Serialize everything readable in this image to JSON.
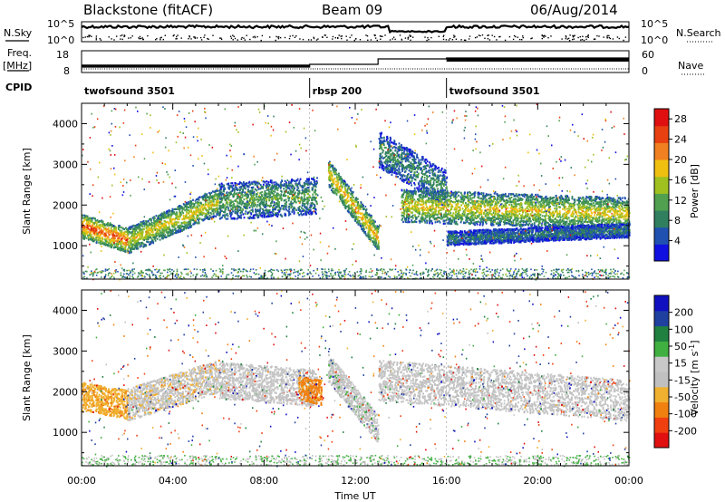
{
  "header": {
    "radar": "Blackstone (fitACF)",
    "beam": "Beam 09",
    "date": "06/Aug/2014"
  },
  "summary": {
    "nsky_label": "N.Sky",
    "nsearch_label": "N.Search",
    "freq_label": "Freq.",
    "freq_unit": "[MHz]",
    "nave_label": "Nave",
    "cpid_label": "CPID",
    "left_tick_hi": "10^5",
    "left_tick_lo": "10^0",
    "right_tick_hi": "10^5",
    "right_tick_lo": "10^0",
    "freq_tick_hi": "18",
    "freq_tick_lo": "8",
    "nave_tick_hi": "60",
    "nave_tick_lo": "0",
    "cpid_segments": [
      {
        "name": "twofsound 3501",
        "start": 0,
        "end": 10
      },
      {
        "name": "rbsp 200",
        "start": 10,
        "end": 16
      },
      {
        "name": "twofsound 3501",
        "start": 16,
        "end": 24
      }
    ]
  },
  "colors": {
    "frame": "#000000",
    "power_scale": [
      "#1010e0",
      "#2050b0",
      "#308060",
      "#50a050",
      "#a0c020",
      "#f0c010",
      "#f08020",
      "#e84010",
      "#e01010"
    ],
    "velocity_scale": [
      "#e01010",
      "#f04010",
      "#f08010",
      "#f0b030",
      "#c0c0c0",
      "#c8c8c8",
      "#40b040",
      "#208040",
      "#2040a0",
      "#1010c0"
    ]
  },
  "chart_data": [
    {
      "type": "heatmap",
      "title": "",
      "xlabel": "Time UT",
      "ylabel": "Slant Range [km]",
      "x_ticks": [
        "00:00",
        "04:00",
        "08:00",
        "12:00",
        "16:00",
        "20:00",
        "00:00"
      ],
      "x_range_hours": [
        0,
        24
      ],
      "y_range_km": [
        180,
        4500
      ],
      "y_ticks": [
        1000,
        2000,
        3000,
        4000
      ],
      "colorbar": {
        "label": "Power [dB]",
        "ticks": [
          4,
          8,
          12,
          16,
          20,
          24,
          28
        ],
        "range": [
          0,
          30
        ]
      },
      "bands": [
        {
          "start": 0.0,
          "end": 2.0,
          "range_start": 1500,
          "range_end": 1150,
          "width": 600,
          "value": 25
        },
        {
          "start": 2.0,
          "end": 6.0,
          "range_start": 1150,
          "range_end": 2100,
          "width": 650,
          "value": 18
        },
        {
          "start": 6.0,
          "end": 10.3,
          "range_start": 2100,
          "range_end": 2250,
          "width": 900,
          "value": 12
        },
        {
          "start": 10.8,
          "end": 13.0,
          "range_start": 2800,
          "range_end": 1200,
          "width": 650,
          "value": 20
        },
        {
          "start": 13.0,
          "end": 16.0,
          "range_start": 3400,
          "range_end": 2400,
          "width": 900,
          "value": 10
        },
        {
          "start": 14.0,
          "end": 24.0,
          "range_start": 2000,
          "range_end": 1800,
          "width": 800,
          "value": 18
        },
        {
          "start": 16.0,
          "end": 24.0,
          "range_start": 1200,
          "range_end": 1400,
          "width": 350,
          "value": 8
        }
      ]
    },
    {
      "type": "heatmap",
      "title": "",
      "xlabel": "Time UT",
      "ylabel": "Slant Range [km]",
      "x_ticks": [
        "00:00",
        "04:00",
        "08:00",
        "12:00",
        "16:00",
        "20:00",
        "00:00"
      ],
      "x_range_hours": [
        0,
        24
      ],
      "y_range_km": [
        180,
        4500
      ],
      "y_ticks": [
        1000,
        2000,
        3000,
        4000
      ],
      "colorbar": {
        "label": "Velocity [m s^-1]",
        "ticks": [
          -200,
          -100,
          -50,
          -15,
          15,
          50,
          100,
          200
        ],
        "range": [
          -250,
          250
        ]
      },
      "bands": [
        {
          "start": 0.0,
          "end": 2.0,
          "range_start": 1900,
          "range_end": 1700,
          "width": 700,
          "value": -40
        },
        {
          "start": 2.0,
          "end": 6.0,
          "range_start": 1700,
          "range_end": 2400,
          "width": 800,
          "value": -5
        },
        {
          "start": 6.0,
          "end": 10.3,
          "range_start": 2300,
          "range_end": 2100,
          "width": 900,
          "value": 0
        },
        {
          "start": 9.5,
          "end": 10.5,
          "range_start": 2100,
          "range_end": 2000,
          "width": 600,
          "value": -60
        },
        {
          "start": 10.8,
          "end": 13.0,
          "range_start": 2600,
          "range_end": 1100,
          "width": 700,
          "value": 2
        },
        {
          "start": 13.0,
          "end": 24.0,
          "range_start": 2300,
          "range_end": 1800,
          "width": 1000,
          "value": 0
        }
      ]
    }
  ]
}
